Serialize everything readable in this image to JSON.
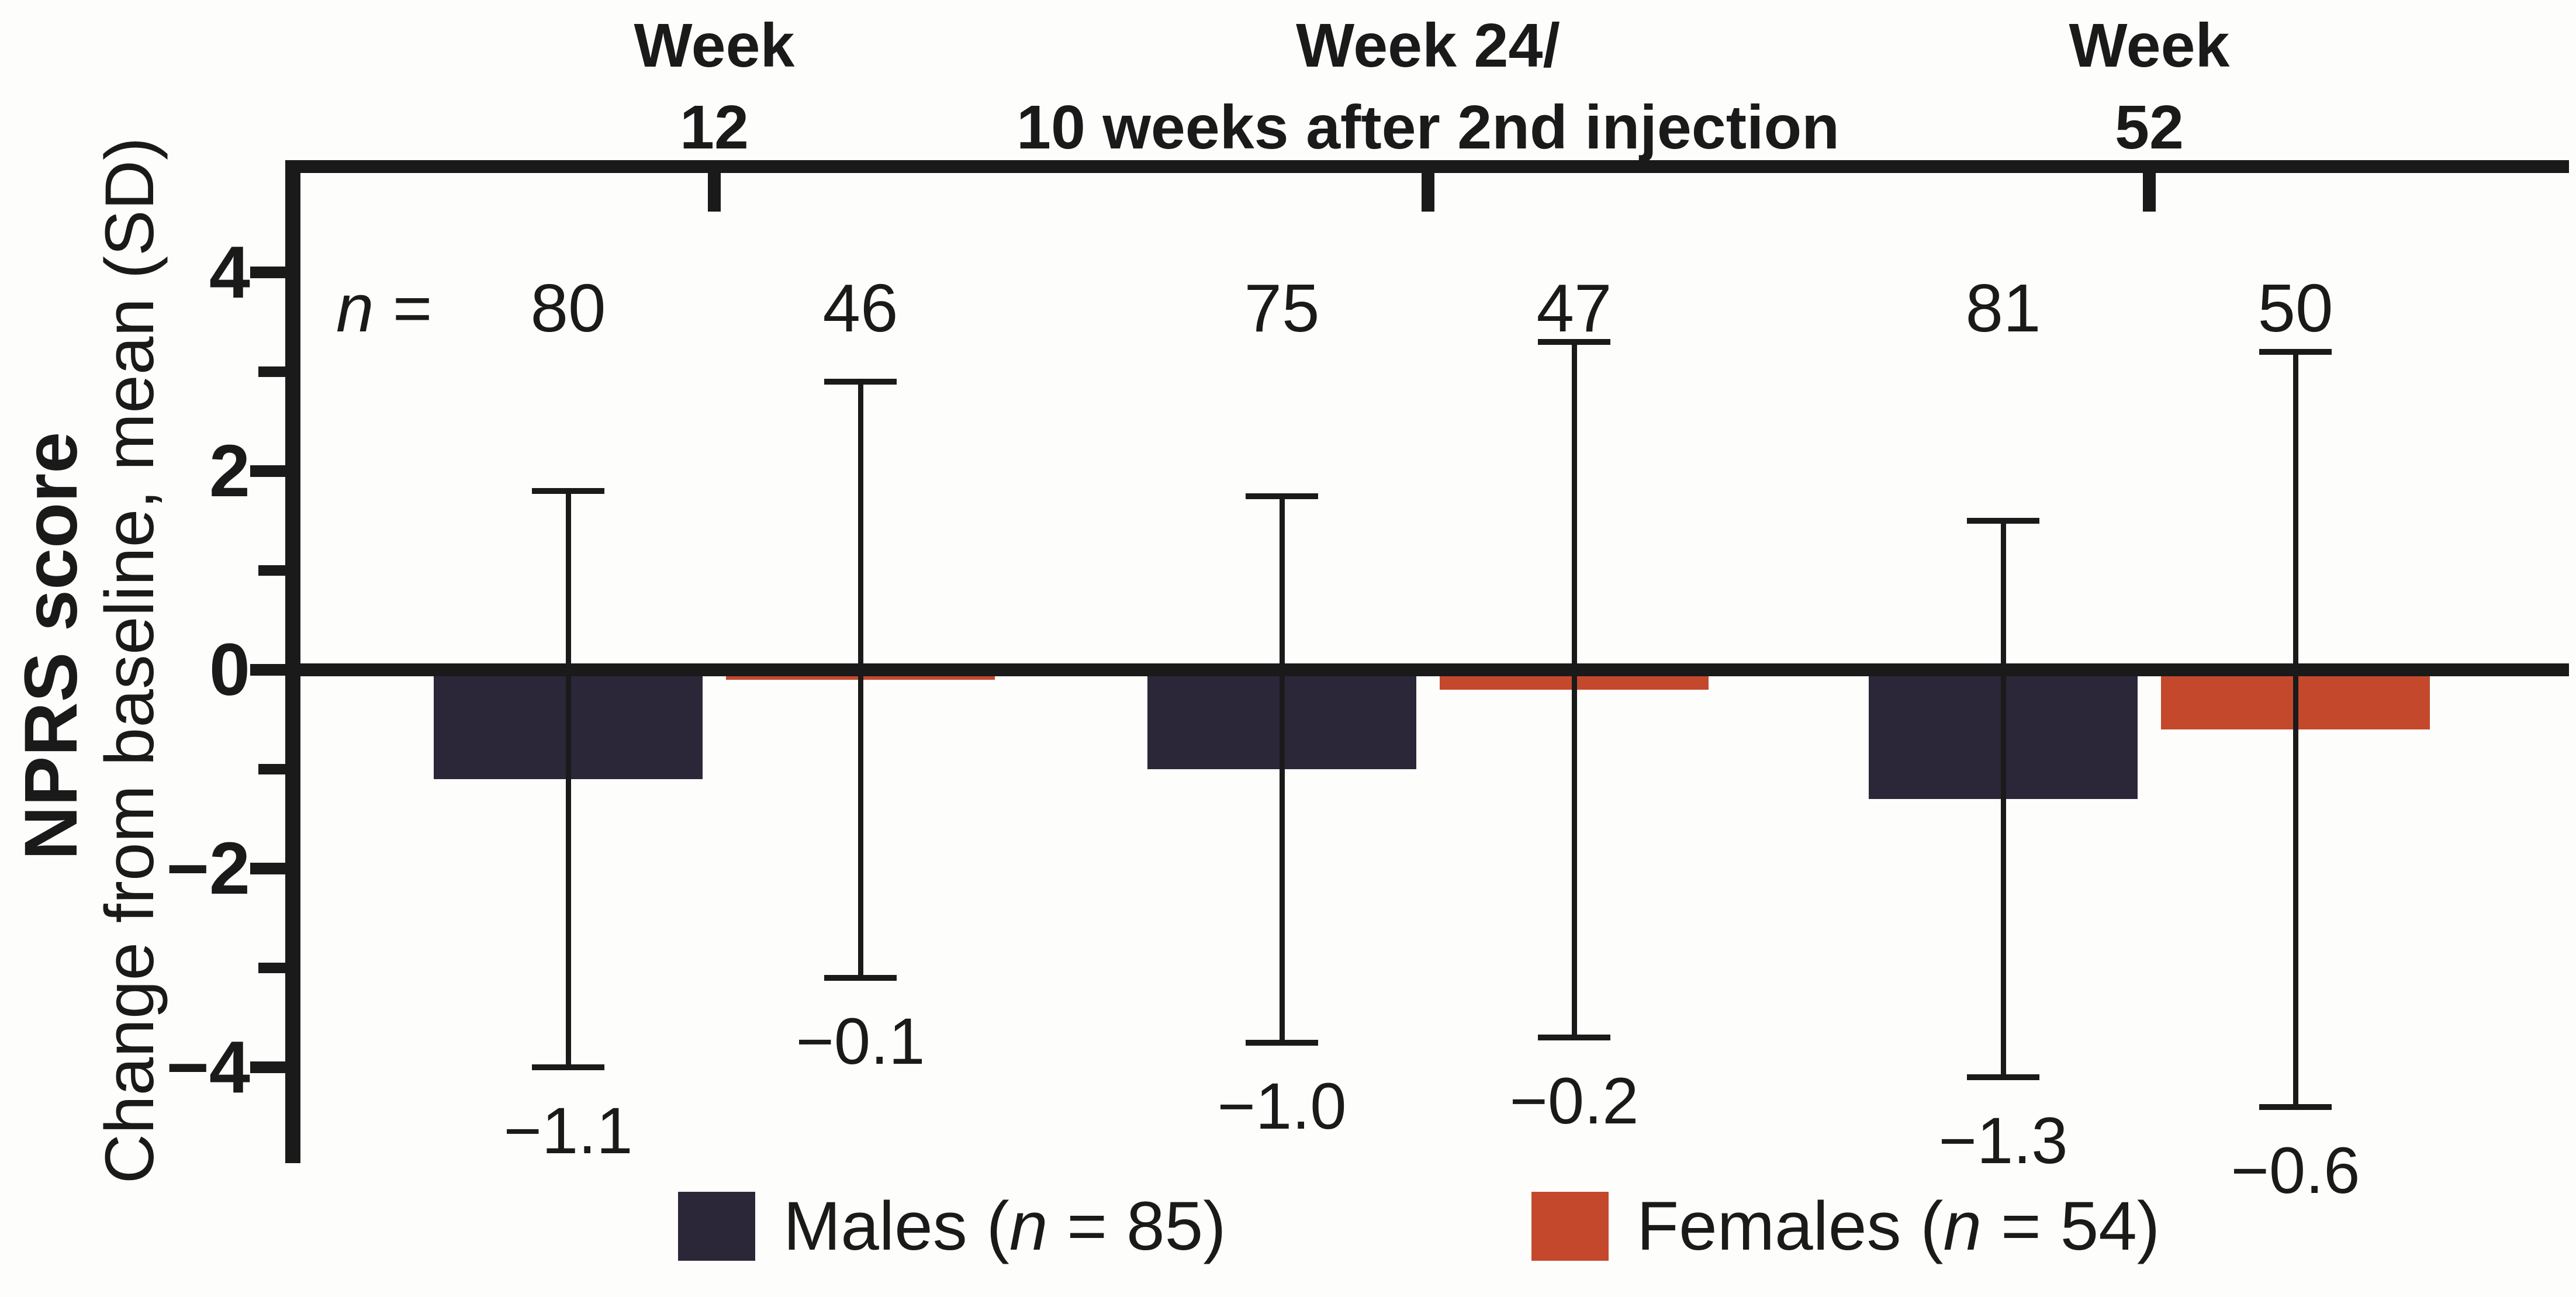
{
  "figure": {
    "y_axis": {
      "title_bold": "NPRS score",
      "title_sub": "Change from baseline, mean (SD)",
      "ticks": [
        {
          "value": 4,
          "label": "4"
        },
        {
          "value": 2,
          "label": "2"
        },
        {
          "value": 0,
          "label": "0"
        },
        {
          "value": -2,
          "label": "−2"
        },
        {
          "value": -4,
          "label": "−4"
        }
      ],
      "minor_ticks": [
        3,
        1,
        -1,
        -3
      ],
      "range": [
        -5,
        5
      ]
    },
    "n_row": {
      "n": "n",
      "eq": " ="
    },
    "legend": [
      {
        "pre": "Males (",
        "n": "n",
        "post": " = 85)",
        "color": "#2b2739"
      },
      {
        "pre": "Females (",
        "n": "n",
        "post": " = 54)",
        "color": "#c4492c"
      }
    ]
  },
  "chart_data": {
    "type": "bar",
    "title": "",
    "xlabel": "",
    "ylabel": "NPRS score — Change from baseline, mean (SD)",
    "ylim": [
      -5,
      5
    ],
    "grid": false,
    "legend_position": "bottom",
    "error_bars": "SD",
    "series": [
      {
        "name": "Males (n = 85)",
        "color": "#2b2739"
      },
      {
        "name": "Females (n = 54)",
        "color": "#c4492c"
      }
    ],
    "groups": [
      {
        "label_lines": [
          "Week",
          "12"
        ],
        "bars": [
          {
            "series": "Males",
            "n": "80",
            "mean": -1.1,
            "sd": 2.9,
            "value_label": "−1.1"
          },
          {
            "series": "Females",
            "n": "46",
            "mean": -0.1,
            "sd": 3.0,
            "value_label": "−0.1"
          }
        ]
      },
      {
        "label_lines": [
          "Week 24/",
          "10 weeks after 2nd injection"
        ],
        "bars": [
          {
            "series": "Males",
            "n": "75",
            "mean": -1.0,
            "sd": 2.75,
            "value_label": "−1.0"
          },
          {
            "series": "Females",
            "n": "47",
            "mean": -0.2,
            "sd": 3.5,
            "value_label": "−0.2"
          }
        ]
      },
      {
        "label_lines": [
          "Week",
          "52"
        ],
        "bars": [
          {
            "series": "Males",
            "n": "81",
            "mean": -1.3,
            "sd": 2.8,
            "value_label": "−1.3"
          },
          {
            "series": "Females",
            "n": "50",
            "mean": -0.6,
            "sd": 3.8,
            "value_label": "−0.6"
          }
        ]
      }
    ]
  }
}
